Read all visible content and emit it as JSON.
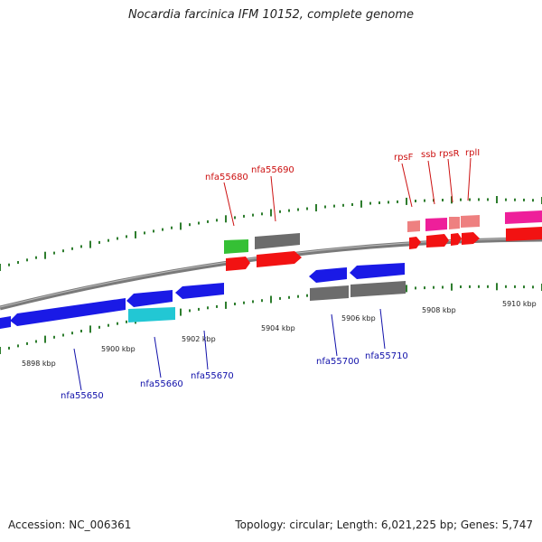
{
  "header": {
    "title": "Nocardia farcinica IFM 10152, complete genome"
  },
  "footer": {
    "accession": "Accession: NC_006361",
    "topology": "Topology: circular; Length: 6,021,225 bp; Genes: 5,747"
  },
  "colors": {
    "backbone": "#8a8a8a",
    "tick": "#2e7d2e",
    "label_forward": "#cc1111",
    "label_reverse": "#1111aa",
    "gene_blue": "#1a1ae6",
    "gene_red": "#f21212",
    "gene_grey": "#6c6c6c",
    "gene_green": "#35c035",
    "gene_cyan": "#22c7d4",
    "gene_salmon": "#ee8080",
    "gene_magenta": "#ee1f9a",
    "gene_pink": "#f0559a"
  },
  "scale": {
    "kbp_labels": [
      "5898 kbp",
      "5900 kbp",
      "5902 kbp",
      "5904 kbp",
      "5906 kbp",
      "5908 kbp",
      "5910 kbp"
    ]
  },
  "gene_labels": {
    "forward": [
      "nfa55680",
      "nfa55690",
      "rpsF",
      "ssb",
      "rpsR",
      "rplI"
    ],
    "reverse": [
      "nfa55650",
      "nfa55660",
      "nfa55670",
      "nfa55700",
      "nfa55710"
    ]
  }
}
